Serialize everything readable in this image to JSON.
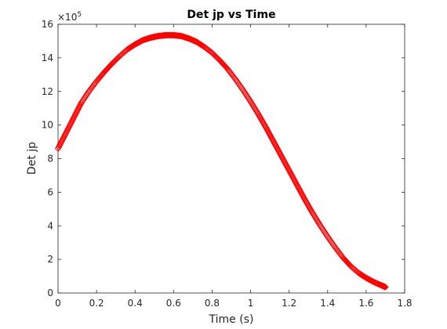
{
  "chart_data": {
    "type": "scatter",
    "title": "Det jp vs Time",
    "xlabel": "Time (s)",
    "ylabel": "Det jp",
    "y_exponent_label": "×10",
    "y_exponent_power": "5",
    "xlim": [
      0,
      1.8
    ],
    "ylim": [
      0,
      16
    ],
    "x_ticks": [
      0,
      0.2,
      0.4,
      0.6,
      0.8,
      1,
      1.2,
      1.4,
      1.6,
      1.8
    ],
    "x_tick_labels": [
      "0",
      "0.2",
      "0.4",
      "0.6",
      "0.8",
      "1",
      "1.2",
      "1.4",
      "1.6",
      "1.8"
    ],
    "y_ticks": [
      0,
      2,
      4,
      6,
      8,
      10,
      12,
      14,
      16
    ],
    "y_tick_labels": [
      "0",
      "2",
      "4",
      "6",
      "8",
      "10",
      "12",
      "14",
      "16"
    ],
    "grid": false,
    "marker": "diamond",
    "marker_color": "#ff0000",
    "series": [
      {
        "x": [
          0.0,
          0.04,
          0.08,
          0.12,
          0.16,
          0.2,
          0.24,
          0.28,
          0.32,
          0.36,
          0.4,
          0.44,
          0.48,
          0.52,
          0.56,
          0.6,
          0.64,
          0.68,
          0.72,
          0.76,
          0.8,
          0.84,
          0.88,
          0.92,
          0.96,
          1.0,
          1.04,
          1.08,
          1.12,
          1.16,
          1.2,
          1.24,
          1.28,
          1.32,
          1.36,
          1.4,
          1.44,
          1.48,
          1.52,
          1.56,
          1.6,
          1.64,
          1.68,
          1.7
        ],
        "y": [
          8.6,
          9.5,
          10.4,
          11.3,
          12.0,
          12.6,
          13.15,
          13.65,
          14.1,
          14.5,
          14.8,
          15.05,
          15.2,
          15.3,
          15.35,
          15.35,
          15.3,
          15.15,
          14.95,
          14.65,
          14.3,
          13.85,
          13.35,
          12.75,
          12.1,
          11.4,
          10.65,
          9.85,
          9.0,
          8.15,
          7.3,
          6.45,
          5.6,
          4.8,
          4.05,
          3.35,
          2.7,
          2.1,
          1.6,
          1.2,
          0.9,
          0.65,
          0.45,
          0.35
        ]
      }
    ]
  }
}
